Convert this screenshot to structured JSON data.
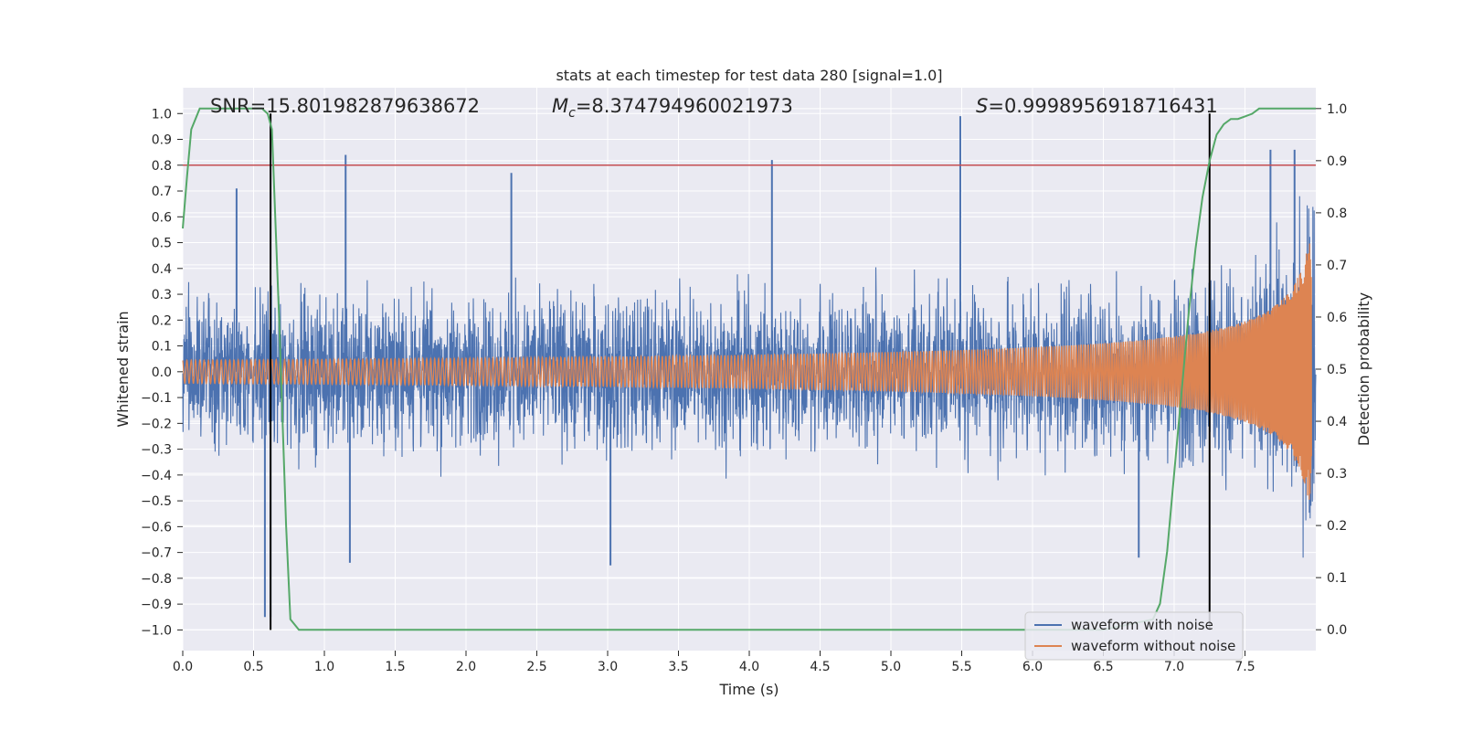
{
  "chart_data": {
    "type": "line",
    "title": "stats at each timestep for test data 280 [signal=1.0]",
    "xlabel": "Time (s)",
    "ylabel": "Whitened strain",
    "y2label": "Detection probability",
    "xlim": [
      0.0,
      8.0
    ],
    "ylim": [
      -1.08,
      1.1
    ],
    "y2lim": [
      -0.04,
      1.04
    ],
    "xticks": [
      "0.0",
      "0.5",
      "1.0",
      "1.5",
      "2.0",
      "2.5",
      "3.0",
      "3.5",
      "4.0",
      "4.5",
      "5.0",
      "5.5",
      "6.0",
      "6.5",
      "7.0",
      "7.5"
    ],
    "yticks": [
      "1.0",
      "0.9",
      "0.8",
      "0.7",
      "0.6",
      "0.5",
      "0.4",
      "0.3",
      "0.2",
      "0.1",
      "0.0",
      "−0.1",
      "−0.2",
      "−0.3",
      "−0.4",
      "−0.5",
      "−0.6",
      "−0.7",
      "−0.8",
      "−0.9",
      "−1.0"
    ],
    "y2ticks": [
      "1.0",
      "0.9",
      "0.8",
      "0.7",
      "0.6",
      "0.5",
      "0.4",
      "0.3",
      "0.2",
      "0.1",
      "0.0"
    ],
    "annotations": {
      "snr": "SNR=15.801982879638672",
      "mc_symbol": "M",
      "mc_sub": "c",
      "mc_value": "=8.374794960021973",
      "s_symbol": "S",
      "s_value": "=0.9998956918716431"
    },
    "threshold_line": {
      "y": 0.8,
      "color": "#c44e52"
    },
    "vertical_lines": [
      0.62,
      7.25
    ],
    "detection_probability": {
      "name": "Detection probability",
      "color": "#55a868",
      "x": [
        0.0,
        0.03,
        0.06,
        0.12,
        0.2,
        0.3,
        0.4,
        0.5,
        0.56,
        0.6,
        0.63,
        0.68,
        0.73,
        0.76,
        0.82,
        1.0,
        2.0,
        3.0,
        4.0,
        5.0,
        6.0,
        6.5,
        6.85,
        6.9,
        6.95,
        7.0,
        7.05,
        7.1,
        7.15,
        7.2,
        7.25,
        7.3,
        7.35,
        7.4,
        7.45,
        7.5,
        7.55,
        7.6,
        7.65,
        7.7,
        7.8,
        7.9,
        8.0
      ],
      "y": [
        0.77,
        0.87,
        0.96,
        1.0,
        1.0,
        1.0,
        1.0,
        1.0,
        1.0,
        0.99,
        0.96,
        0.6,
        0.2,
        0.02,
        0.0,
        0.0,
        0.0,
        0.0,
        0.0,
        0.0,
        0.0,
        0.0,
        0.02,
        0.05,
        0.15,
        0.3,
        0.45,
        0.6,
        0.73,
        0.83,
        0.9,
        0.95,
        0.97,
        0.98,
        0.98,
        0.985,
        0.99,
        1.0,
        1.0,
        1.0,
        1.0,
        1.0,
        1.0
      ]
    },
    "series": [
      {
        "name": "waveform with noise",
        "color": "#4c72b0",
        "description": "noisy whitened strain, samples spanning roughly -0.95 to 1.0",
        "peaks": [
          {
            "x": 0.38,
            "y": 0.71
          },
          {
            "x": 0.58,
            "y": -0.95
          },
          {
            "x": 0.62,
            "y": -0.95
          },
          {
            "x": 1.15,
            "y": 0.84
          },
          {
            "x": 1.18,
            "y": -0.74
          },
          {
            "x": 2.32,
            "y": 0.77
          },
          {
            "x": 3.02,
            "y": -0.75
          },
          {
            "x": 4.16,
            "y": 0.82
          },
          {
            "x": 5.49,
            "y": 0.99
          },
          {
            "x": 6.75,
            "y": -0.72
          },
          {
            "x": 7.68,
            "y": 0.86
          },
          {
            "x": 7.85,
            "y": 0.86
          }
        ]
      },
      {
        "name": "waveform without noise",
        "color": "#dd8452",
        "description": "chirp: amplitude grows from about 0.02 to 0.5 near t=7.95 s with increasing frequency"
      }
    ],
    "legend_location": "lower-right",
    "grid": true
  }
}
